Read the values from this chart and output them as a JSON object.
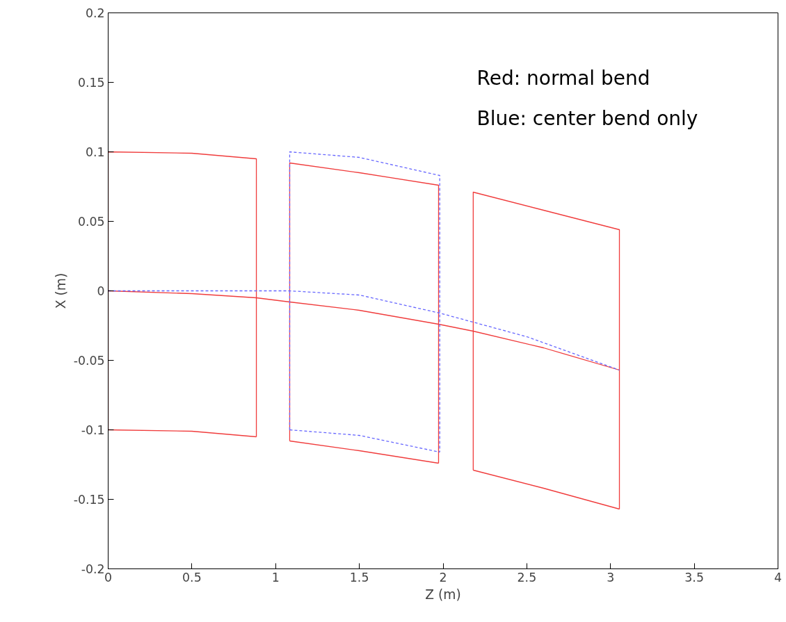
{
  "chart_data": {
    "type": "line",
    "xlabel": "Z (m)",
    "ylabel": "X (m)",
    "annotations": [
      "Red: normal bend",
      "Blue: center bend only"
    ],
    "xlim": [
      0,
      4
    ],
    "ylim": [
      -0.2,
      0.2
    ],
    "xticks": [
      0,
      0.5,
      1,
      1.5,
      2,
      2.5,
      3,
      3.5,
      4
    ],
    "yticks": [
      -0.2,
      -0.15,
      -0.1,
      -0.05,
      0,
      0.05,
      0.1,
      0.15,
      0.2
    ],
    "grid": false,
    "marker": "none",
    "series": [
      {
        "color": "#f03c3c",
        "line_style": "solid",
        "x": [
          0,
          0,
          0.5,
          0.885,
          0.885
        ],
        "values": [
          -0.1,
          0.1,
          0.099,
          0.095,
          -0.105
        ]
      },
      {
        "color": "#f03c3c",
        "line_style": "solid",
        "x": [
          0,
          0.5,
          0.885
        ],
        "values": [
          -0.1,
          -0.101,
          -0.105
        ]
      },
      {
        "color": "#f03c3c",
        "line_style": "solid",
        "x": [
          1.084,
          1.084,
          1.5,
          1.973,
          1.973
        ],
        "values": [
          -0.108,
          0.092,
          0.085,
          0.076,
          -0.124
        ]
      },
      {
        "color": "#f03c3c",
        "line_style": "solid",
        "x": [
          1.084,
          1.5,
          1.973
        ],
        "values": [
          -0.108,
          -0.115,
          -0.124
        ]
      },
      {
        "color": "#f03c3c",
        "line_style": "solid",
        "x": [
          2.18,
          2.18,
          2.6,
          3.053,
          3.053
        ],
        "values": [
          -0.129,
          0.071,
          0.058,
          0.044,
          -0.157
        ]
      },
      {
        "color": "#f03c3c",
        "line_style": "solid",
        "x": [
          2.18,
          2.6,
          3.053
        ],
        "values": [
          -0.129,
          -0.142,
          -0.157
        ]
      },
      {
        "color": "#f03c3c",
        "line_style": "solid",
        "x": [
          0,
          0.5,
          0.885,
          1.084,
          1.5,
          1.973,
          2.18,
          2.6,
          3.053
        ],
        "values": [
          0,
          -0.002,
          -0.005,
          -0.008,
          -0.014,
          -0.024,
          -0.029,
          -0.041,
          -0.057
        ]
      },
      {
        "color": "#6666ff",
        "line_style": "dashed",
        "x": [
          1.084,
          1.084,
          1.5,
          1.98,
          1.98
        ],
        "values": [
          -0.1,
          0.1,
          0.096,
          0.083,
          -0.116
        ]
      },
      {
        "color": "#6666ff",
        "line_style": "dashed",
        "x": [
          1.084,
          1.5,
          1.98
        ],
        "values": [
          -0.1,
          -0.104,
          -0.116
        ]
      },
      {
        "color": "#6666ff",
        "line_style": "dashed",
        "x": [
          0,
          0.5,
          1.084,
          1.5,
          1.98,
          2.5,
          3.053
        ],
        "values": [
          0,
          0,
          0,
          -0.003,
          -0.016,
          -0.033,
          -0.057
        ]
      }
    ]
  }
}
